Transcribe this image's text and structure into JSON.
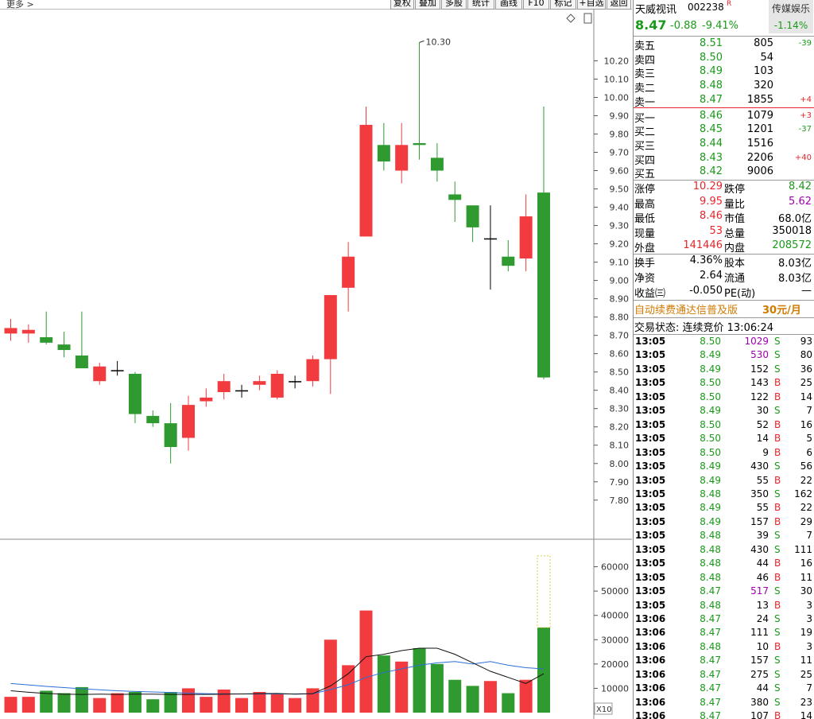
{
  "toolbar": {
    "more": "更多 >",
    "buttons": [
      "复权",
      "叠加",
      "多股",
      "统计",
      "画线",
      "F10",
      "标记",
      "+自选",
      "返回"
    ]
  },
  "stock": {
    "name": "天威视讯",
    "code": "002238",
    "flag": "R",
    "sector": "传媒娱乐",
    "sector_change": "-1.14%",
    "price": "8.47",
    "change": "-0.88",
    "pct": "-9.41%"
  },
  "orderbook": {
    "asks": [
      {
        "label": "卖五",
        "price": "8.51",
        "vol": "805",
        "chg": "-39"
      },
      {
        "label": "卖四",
        "price": "8.50",
        "vol": "54",
        "chg": ""
      },
      {
        "label": "卖三",
        "price": "8.49",
        "vol": "103",
        "chg": ""
      },
      {
        "label": "卖二",
        "price": "8.48",
        "vol": "320",
        "chg": ""
      },
      {
        "label": "卖一",
        "price": "8.47",
        "vol": "1855",
        "chg": "+4"
      }
    ],
    "bids": [
      {
        "label": "买一",
        "price": "8.46",
        "vol": "1079",
        "chg": "+3"
      },
      {
        "label": "买二",
        "price": "8.45",
        "vol": "1201",
        "chg": "-37"
      },
      {
        "label": "买三",
        "price": "8.44",
        "vol": "1516",
        "chg": ""
      },
      {
        "label": "买四",
        "price": "8.43",
        "vol": "2206",
        "chg": "+40"
      },
      {
        "label": "买五",
        "price": "8.42",
        "vol": "9006",
        "chg": ""
      }
    ]
  },
  "stats": [
    {
      "l1": "涨停",
      "v1": "10.29",
      "c1": "rd",
      "l2": "跌停",
      "v2": "8.42",
      "c2": "gr"
    },
    {
      "l1": "最高",
      "v1": "9.95",
      "c1": "rd",
      "l2": "量比",
      "v2": "5.62",
      "c2": "pu"
    },
    {
      "l1": "最低",
      "v1": "8.46",
      "c1": "rd",
      "l2": "市值",
      "v2": "68.0亿",
      "c2": "bk"
    },
    {
      "l1": "现量",
      "v1": "53",
      "c1": "rd",
      "l2": "总量",
      "v2": "350018",
      "c2": "bk"
    },
    {
      "l1": "外盘",
      "v1": "141446",
      "c1": "rd",
      "l2": "内盘",
      "v2": "208572",
      "c2": "gr"
    }
  ],
  "stats2": [
    {
      "l1": "换手",
      "v1": "4.36%",
      "l2": "股本",
      "v2": "8.03亿"
    },
    {
      "l1": "净资",
      "v1": "2.64",
      "l2": "流通",
      "v2": "8.03亿"
    },
    {
      "l1": "收益㈢",
      "v1": "-0.050",
      "l2": "PE(动)",
      "v2": "—"
    }
  ],
  "ad": {
    "text": "自动续费通达信普及版",
    "price": "30元/月"
  },
  "status": "交易状态: 连续竞价 13:06:24",
  "ticks": [
    [
      "13:05",
      "8.50",
      "1029",
      "S",
      "93"
    ],
    [
      "13:05",
      "8.49",
      "530",
      "S",
      "80"
    ],
    [
      "13:05",
      "8.49",
      "152",
      "S",
      "36"
    ],
    [
      "13:05",
      "8.50",
      "143",
      "B",
      "25"
    ],
    [
      "13:05",
      "8.50",
      "122",
      "B",
      "14"
    ],
    [
      "13:05",
      "8.49",
      "30",
      "S",
      "7"
    ],
    [
      "13:05",
      "8.50",
      "52",
      "B",
      "16"
    ],
    [
      "13:05",
      "8.50",
      "14",
      "B",
      "5"
    ],
    [
      "13:05",
      "8.50",
      "9",
      "B",
      "6"
    ],
    [
      "13:05",
      "8.49",
      "430",
      "S",
      "56"
    ],
    [
      "13:05",
      "8.49",
      "55",
      "B",
      "22"
    ],
    [
      "13:05",
      "8.48",
      "350",
      "S",
      "162"
    ],
    [
      "13:05",
      "8.49",
      "55",
      "B",
      "22"
    ],
    [
      "13:05",
      "8.49",
      "157",
      "B",
      "29"
    ],
    [
      "13:05",
      "8.48",
      "39",
      "S",
      "7"
    ],
    [
      "13:05",
      "8.48",
      "430",
      "S",
      "111"
    ],
    [
      "13:05",
      "8.48",
      "44",
      "B",
      "16"
    ],
    [
      "13:05",
      "8.48",
      "46",
      "B",
      "11"
    ],
    [
      "13:05",
      "8.47",
      "517",
      "S",
      "30"
    ],
    [
      "13:05",
      "8.48",
      "13",
      "B",
      "3"
    ],
    [
      "13:06",
      "8.47",
      "24",
      "S",
      "3"
    ],
    [
      "13:06",
      "8.47",
      "111",
      "S",
      "19"
    ],
    [
      "13:06",
      "8.48",
      "10",
      "B",
      "3"
    ],
    [
      "13:06",
      "8.47",
      "157",
      "S",
      "11"
    ],
    [
      "13:06",
      "8.47",
      "275",
      "S",
      "25"
    ],
    [
      "13:06",
      "8.47",
      "44",
      "S",
      "7"
    ],
    [
      "13:06",
      "8.47",
      "380",
      "S",
      "23"
    ],
    [
      "13:06",
      "8.47",
      "107",
      "B",
      "14"
    ]
  ],
  "chart_data": {
    "type": "candlestick",
    "price_ticks": [
      "10.20",
      "10.10",
      "10.00",
      "9.90",
      "9.80",
      "9.70",
      "9.60",
      "9.50",
      "9.40",
      "9.30",
      "9.20",
      "9.10",
      "9.00",
      "8.90",
      "8.80",
      "8.70",
      "8.60",
      "8.50",
      "8.40",
      "8.30",
      "8.20",
      "8.10",
      "8.00",
      "7.90",
      "7.80"
    ],
    "price_range": [
      7.66,
      10.38
    ],
    "max_label": "10.30",
    "vol_ticks": [
      "60000",
      "50000",
      "40000",
      "30000",
      "20000",
      "10000"
    ],
    "vol_range": [
      0,
      70000
    ],
    "vol_unit": "X10",
    "candles": [
      {
        "o": 8.71,
        "c": 8.74,
        "h": 8.79,
        "l": 8.67,
        "v": 6500
      },
      {
        "o": 8.71,
        "c": 8.73,
        "h": 8.76,
        "l": 8.66,
        "v": 6500
      },
      {
        "o": 8.69,
        "c": 8.66,
        "h": 8.83,
        "l": 8.65,
        "v": 9000
      },
      {
        "o": 8.65,
        "c": 8.62,
        "h": 8.72,
        "l": 8.58,
        "v": 8000
      },
      {
        "o": 8.59,
        "c": 8.52,
        "h": 8.83,
        "l": 8.52,
        "v": 10500
      },
      {
        "o": 8.45,
        "c": 8.53,
        "h": 8.55,
        "l": 8.43,
        "v": 6000
      },
      {
        "o": 8.51,
        "c": 8.51,
        "h": 8.56,
        "l": 8.48,
        "v": 8000
      },
      {
        "o": 8.49,
        "c": 8.27,
        "h": 8.5,
        "l": 8.22,
        "v": 8500
      },
      {
        "o": 8.26,
        "c": 8.22,
        "h": 8.29,
        "l": 8.2,
        "v": 5500
      },
      {
        "o": 8.22,
        "c": 8.09,
        "h": 8.33,
        "l": 8.0,
        "v": 8500
      },
      {
        "o": 8.14,
        "c": 8.32,
        "h": 8.37,
        "l": 8.07,
        "v": 10000
      },
      {
        "o": 8.34,
        "c": 8.36,
        "h": 8.41,
        "l": 8.31,
        "v": 6500
      },
      {
        "o": 8.39,
        "c": 8.45,
        "h": 8.49,
        "l": 8.35,
        "v": 9500
      },
      {
        "o": 8.4,
        "c": 8.4,
        "h": 8.43,
        "l": 8.36,
        "v": 6000
      },
      {
        "o": 8.43,
        "c": 8.45,
        "h": 8.48,
        "l": 8.4,
        "v": 8500
      },
      {
        "o": 8.36,
        "c": 8.49,
        "h": 8.51,
        "l": 8.35,
        "v": 7500
      },
      {
        "o": 8.45,
        "c": 8.45,
        "h": 8.48,
        "l": 8.41,
        "v": 6000
      },
      {
        "o": 8.45,
        "c": 8.57,
        "h": 8.59,
        "l": 8.42,
        "v": 10000
      },
      {
        "o": 8.57,
        "c": 8.92,
        "h": 8.92,
        "l": 8.38,
        "v": 30000
      },
      {
        "o": 8.96,
        "c": 9.13,
        "h": 9.21,
        "l": 8.83,
        "v": 19500
      },
      {
        "o": 9.24,
        "c": 9.85,
        "h": 9.95,
        "l": 9.24,
        "v": 42000
      },
      {
        "o": 9.74,
        "c": 9.65,
        "h": 9.86,
        "l": 9.6,
        "v": 23500
      },
      {
        "o": 9.6,
        "c": 9.74,
        "h": 9.86,
        "l": 9.53,
        "v": 21000
      },
      {
        "o": 9.75,
        "c": 9.74,
        "h": 10.3,
        "l": 9.66,
        "v": 26500
      },
      {
        "o": 9.67,
        "c": 9.6,
        "h": 9.75,
        "l": 9.54,
        "v": 20000
      },
      {
        "o": 9.47,
        "c": 9.44,
        "h": 9.54,
        "l": 9.32,
        "v": 13500
      },
      {
        "o": 9.41,
        "c": 9.29,
        "h": 9.41,
        "l": 9.21,
        "v": 11000
      },
      {
        "o": 9.23,
        "c": 9.23,
        "h": 9.41,
        "l": 8.95,
        "v": 13000
      },
      {
        "o": 9.13,
        "c": 9.08,
        "h": 9.22,
        "l": 9.05,
        "v": 8000
      },
      {
        "o": 9.12,
        "c": 9.35,
        "h": 9.47,
        "l": 9.05,
        "v": 13500
      },
      {
        "o": 9.48,
        "c": 8.47,
        "h": 9.95,
        "l": 8.46,
        "v": 35000
      }
    ],
    "ma_short": [
      9000,
      8400,
      7900,
      7600,
      7500,
      7600,
      7500,
      7600,
      7600,
      7500,
      7500,
      7500,
      7600,
      7700,
      7800,
      7900,
      7600,
      7800,
      11000,
      16000,
      23000,
      24000,
      25500,
      26500,
      26500,
      24000,
      20500,
      17000,
      14500,
      12000,
      16000
    ],
    "ma_long": [
      12000,
      11400,
      10800,
      10300,
      9800,
      9400,
      9000,
      8700,
      8500,
      8300,
      8000,
      7800,
      7700,
      7700,
      7700,
      7700,
      7700,
      7800,
      9500,
      11500,
      14500,
      16500,
      18000,
      19500,
      20500,
      21000,
      20000,
      21000,
      19500,
      18500,
      18000
    ],
    "ghost_volume": 64500
  }
}
